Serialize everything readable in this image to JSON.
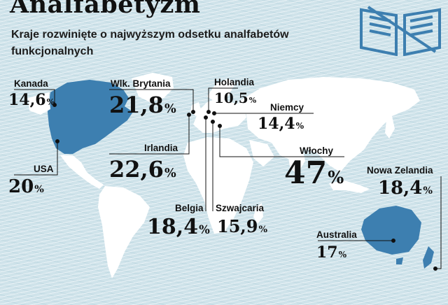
{
  "title": "Analfabetyzm",
  "subtitle": "Kraje rozwinięte o najwyższym odsetku analfabetów funkcjonalnych",
  "colors": {
    "ocean": "#cfe3ea",
    "land": "#ffffff",
    "highlight": "#3d7fb0",
    "leader": "#111111"
  },
  "logo_icon": "open-book-icon",
  "countries": [
    {
      "id": "kanada",
      "name": "Kanada",
      "value": "14,6",
      "unit": "%"
    },
    {
      "id": "usa",
      "name": "USA",
      "value": "20",
      "unit": "%"
    },
    {
      "id": "wielka-brytania",
      "name": "Wlk. Brytania",
      "value": "21,8",
      "unit": "%"
    },
    {
      "id": "irlandia",
      "name": "Irlandia",
      "value": "22,6",
      "unit": "%"
    },
    {
      "id": "holandia",
      "name": "Holandia",
      "value": "10,5",
      "unit": "%"
    },
    {
      "id": "niemcy",
      "name": "Niemcy",
      "value": "14,4",
      "unit": "%"
    },
    {
      "id": "wlochy",
      "name": "Włochy",
      "value": "47",
      "unit": "%"
    },
    {
      "id": "belgia",
      "name": "Belgia",
      "value": "18,4",
      "unit": "%"
    },
    {
      "id": "szwajcaria",
      "name": "Szwajcaria",
      "value": "15,9",
      "unit": "%"
    },
    {
      "id": "nowa-zelandia",
      "name": "Nowa Zelandia",
      "value": "18,4",
      "unit": "%"
    },
    {
      "id": "australia",
      "name": "Australia",
      "value": "17",
      "unit": "%"
    }
  ]
}
